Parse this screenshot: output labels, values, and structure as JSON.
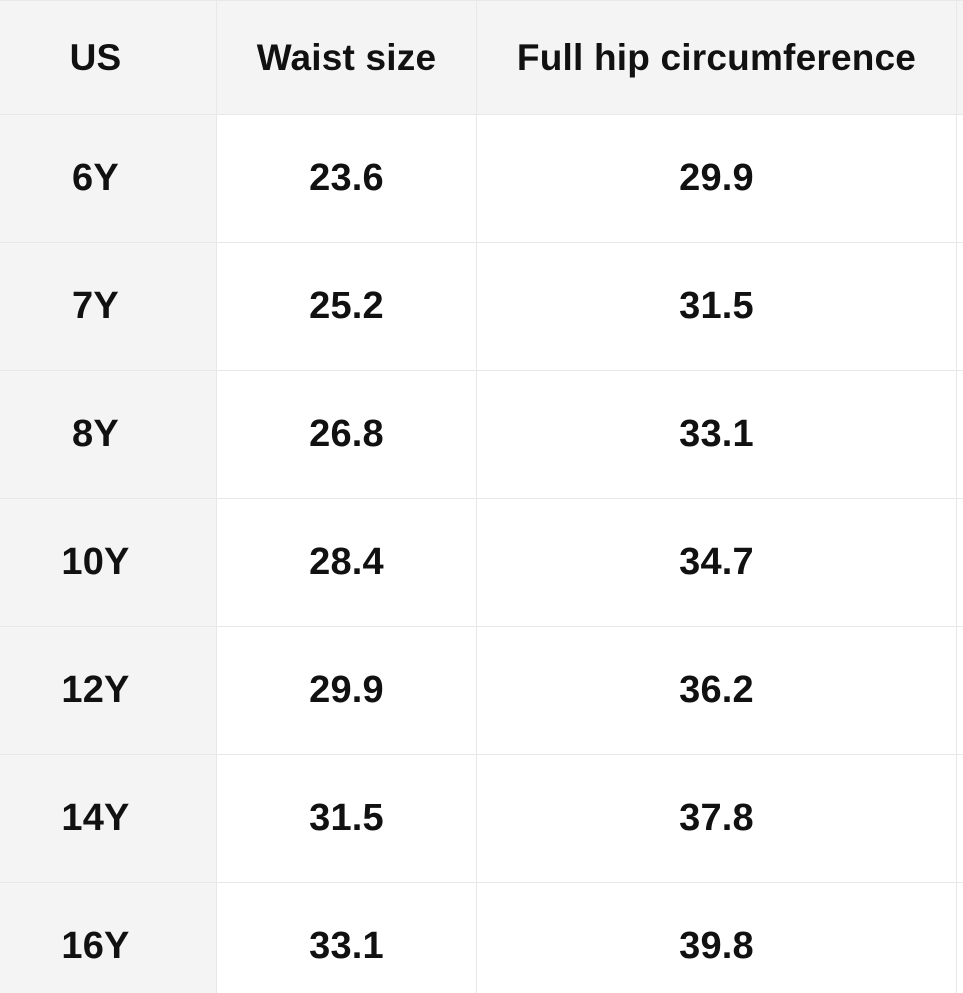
{
  "chart_data": {
    "type": "table",
    "columns": [
      "US",
      "Waist size",
      "Full hip circumference"
    ],
    "rows": [
      [
        "6Y",
        "23.6",
        "29.9"
      ],
      [
        "7Y",
        "25.2",
        "31.5"
      ],
      [
        "8Y",
        "26.8",
        "33.1"
      ],
      [
        "10Y",
        "28.4",
        "34.7"
      ],
      [
        "12Y",
        "29.9",
        "36.2"
      ],
      [
        "14Y",
        "31.5",
        "37.8"
      ],
      [
        "16Y",
        "33.1",
        "39.8"
      ]
    ],
    "layout_hints": {
      "header_row": true,
      "first_column_highlighted": true,
      "table_clipped_left_and_right": true
    }
  },
  "colors": {
    "header_background": "#f4f4f5",
    "row_label_background": "#f4f4f5",
    "cell_background": "#ffffff",
    "border": "#e8e8e8",
    "text": "#111111"
  }
}
